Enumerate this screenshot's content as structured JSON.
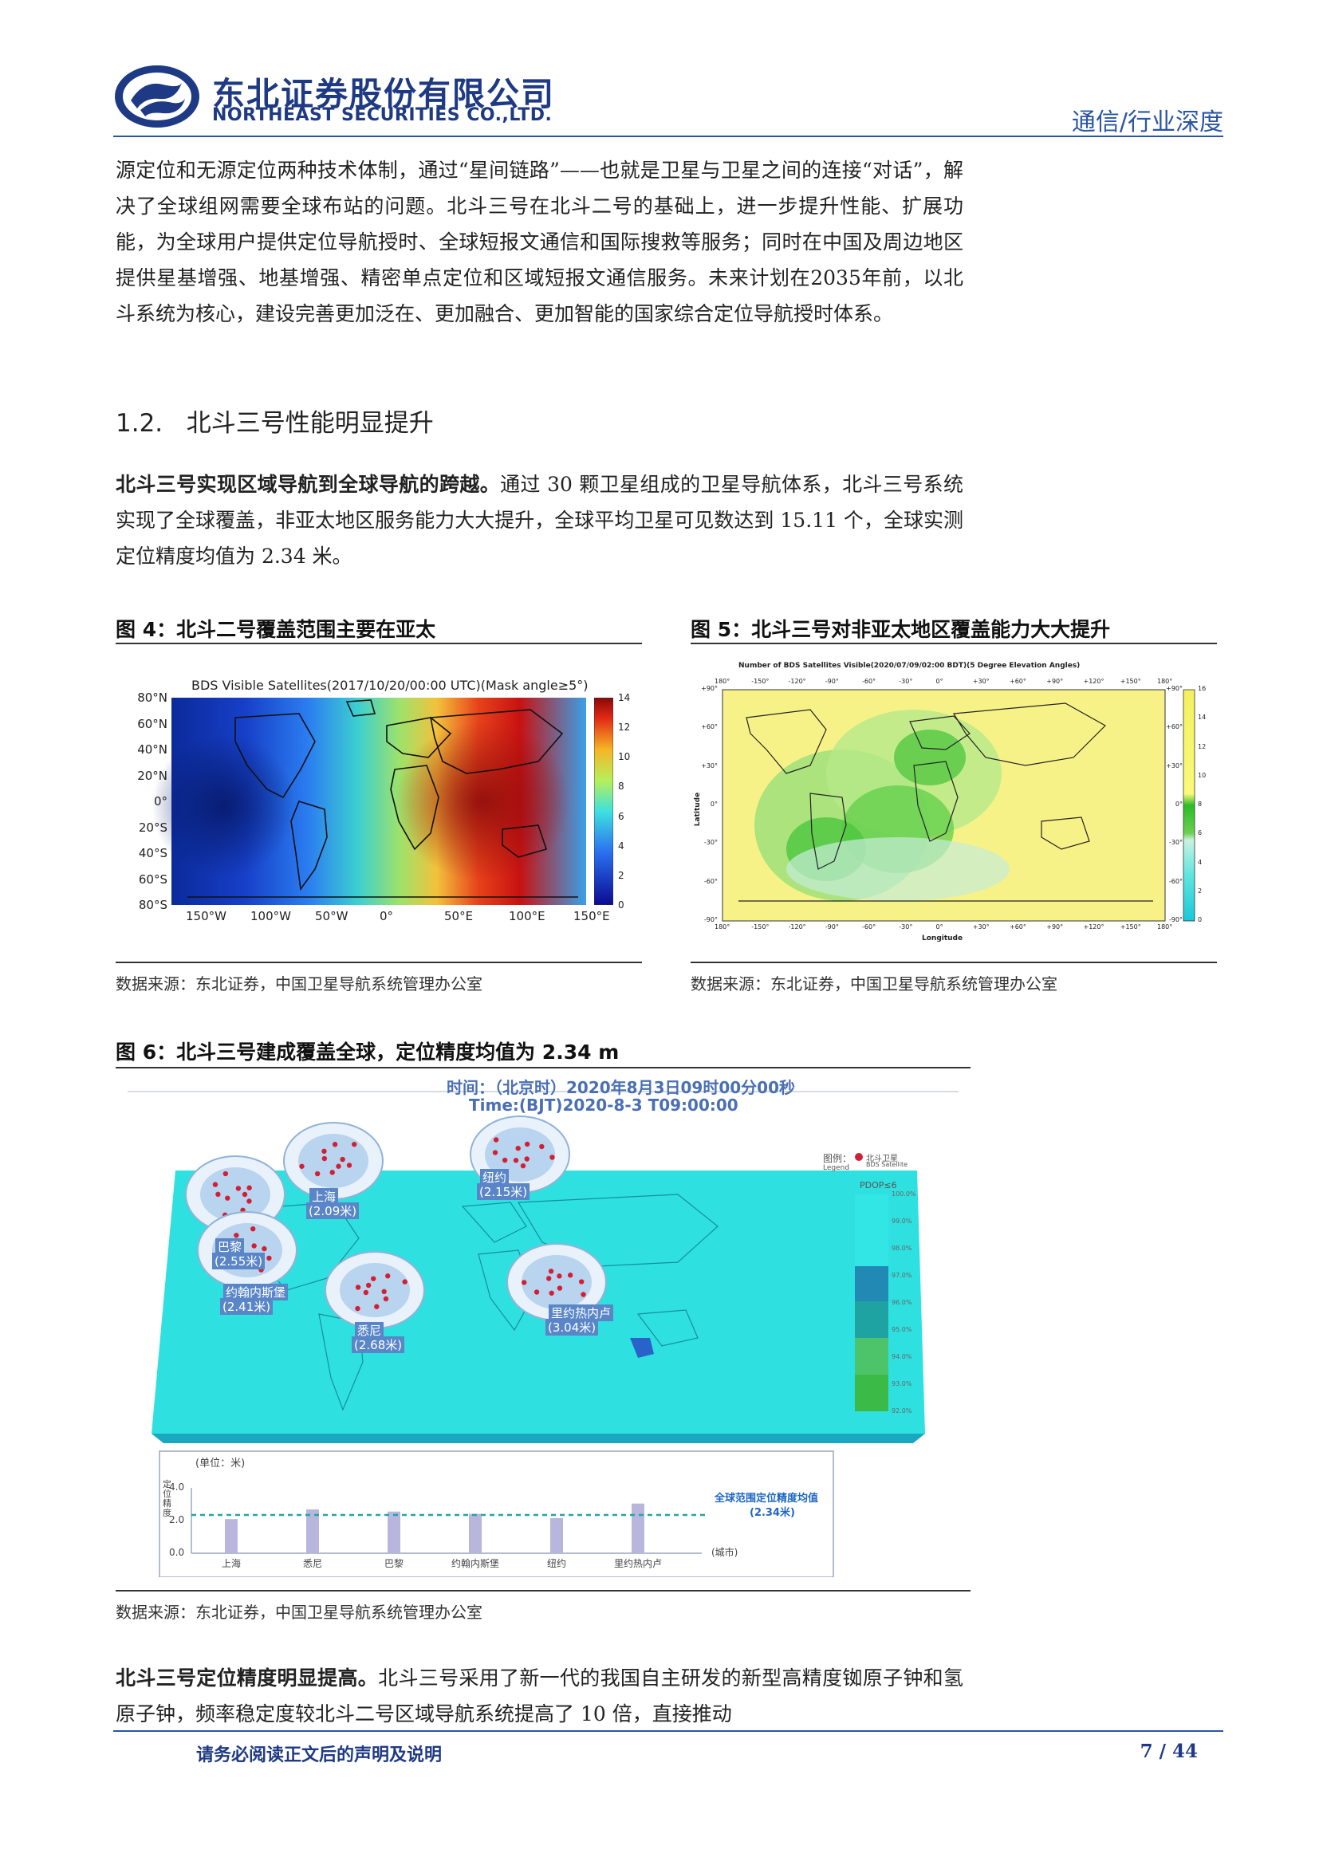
{
  "header": {
    "company_cn": "东北证券股份有限公司",
    "company_en": "NORTHEAST SECURITIES CO.,LTD.",
    "tag": "通信/行业深度",
    "brand_color": "#1e3a84",
    "accent_color": "#2a55a5"
  },
  "intro_paragraph": "源定位和无源定位两种技术体制，通过“星间链路”——也就是卫星与卫星之间的连接“对话”，解决了全球组网需要全球布站的问题。北斗三号在北斗二号的基础上，进一步提升性能、扩展功能，为全球用户提供定位导航授时、全球短报文通信和国际搜救等服务；同时在中国及周边地区提供星基增强、地基增强、精密单点定位和区域短报文通信服务。未来计划在2035年前，以北斗系统为核心，建设完善更加泛在、更加融合、更加智能的国家综合定位导航授时体系。",
  "section": {
    "number": "1.2.",
    "title": "北斗三号性能明显提升"
  },
  "para2": {
    "lead": "北斗三号实现区域导航到全球导航的跨越。",
    "text": "通过 30 颗卫星组成的卫星导航体系，北斗三号系统实现了全球覆盖，非亚太地区服务能力大大提升，全球平均卫星可见数达到 15.11 个，全球实测定位精度均值为 2.34 米。"
  },
  "fig4": {
    "caption": "图 4：北斗二号覆盖范围主要在亚太",
    "chart_title": "BDS Visible Satellites(2017/10/20/00:00 UTC)(Mask angle≥5°)",
    "y_ticks": [
      "80°N",
      "60°N",
      "40°N",
      "20°N",
      "0°",
      "20°S",
      "40°S",
      "60°S",
      "80°S"
    ],
    "x_ticks": [
      "150°W",
      "100°W",
      "50°W",
      "0°",
      "50°E",
      "100°E",
      "150°E"
    ],
    "colorbar_ticks": [
      "14",
      "12",
      "10",
      "8",
      "6",
      "4",
      "2",
      "0"
    ],
    "source": "数据来源：东北证券，中国卫星导航系统管理办公室"
  },
  "fig5": {
    "caption": "图 5：北斗三号对非亚太地区覆盖能力大大提升",
    "chart_title": "Number of BDS Satellites Visible(2020/07/09/02:00 BDT)(5 Degree Elevation Angles)",
    "x_ticks": [
      "180°",
      "-150°",
      "-120°",
      "-90°",
      "-60°",
      "-30°",
      "0°",
      "+30°",
      "+60°",
      "+90°",
      "+120°",
      "+150°",
      "180°"
    ],
    "y_ticks": [
      "+90°",
      "+60°",
      "+30°",
      "0°",
      "-30°",
      "-60°",
      "-90°"
    ],
    "xlabel": "Longitude",
    "ylabel": "Latitude",
    "colorbar_ticks": [
      "16",
      "14",
      "12",
      "10",
      "8",
      "6",
      "4",
      "2",
      "0"
    ],
    "source": "数据来源：东北证券，中国卫星导航系统管理办公室"
  },
  "fig6": {
    "caption": "图 6：北斗三号建成覆盖全球，定位精度均值为 2.34 m",
    "time_cn": "时间：（北京时）2020年8月3日09时00分00秒",
    "time_en": "Time:(BJT)2020-8-3 T09:00:00",
    "legend_title": "图例：",
    "legend_sat_cn": "北斗卫星",
    "legend_sat_en": "BDS Satellite",
    "legend_label": "Legend",
    "pdop_label": "PDOP≤6",
    "pdop_scale": [
      "100.0%",
      "99.0%",
      "98.0%",
      "97.0%",
      "96.0%",
      "95.0%",
      "94.0%",
      "93.0%",
      "92.0%"
    ],
    "cities": [
      {
        "name": "巴黎",
        "accuracy": "(2.55米)"
      },
      {
        "name": "上海",
        "accuracy": "(2.09米)"
      },
      {
        "name": "纽约",
        "accuracy": "(2.15米)"
      },
      {
        "name": "约翰内斯堡",
        "accuracy": "(2.41米)"
      },
      {
        "name": "悉尼",
        "accuracy": "(2.68米)"
      },
      {
        "name": "里约热内卢",
        "accuracy": "(3.04米)"
      }
    ],
    "source": "数据来源：东北证券，中国卫星导航系统管理办公室"
  },
  "chart_data": {
    "type": "bar",
    "title": "",
    "ylabel": "定位精度",
    "unit_label": "(单位：米)",
    "xlabel": "(城市)",
    "categories": [
      "上海",
      "悉尼",
      "巴黎",
      "约翰内斯堡",
      "纽约",
      "里约热内卢"
    ],
    "values": [
      2.09,
      2.68,
      2.55,
      2.41,
      2.15,
      3.04
    ],
    "ylim": [
      0,
      4.0
    ],
    "y_ticks": [
      "4.0",
      "2.0",
      "0.0"
    ],
    "reference_line": {
      "value": 2.34,
      "label": "全球范围定位精度均值",
      "label2": "(2.34米)"
    },
    "bar_color": "#b9b6dd",
    "grid": false
  },
  "para3": {
    "lead": "北斗三号定位精度明显提高。",
    "text": "北斗三号采用了新一代的我国自主研发的新型高精度铷原子钟和氢原子钟，频率稳定度较北斗二号区域导航系统提高了 10 倍，直接推动"
  },
  "footer": {
    "note": "请务必阅读正文后的声明及说明",
    "page": "7 / 44"
  }
}
